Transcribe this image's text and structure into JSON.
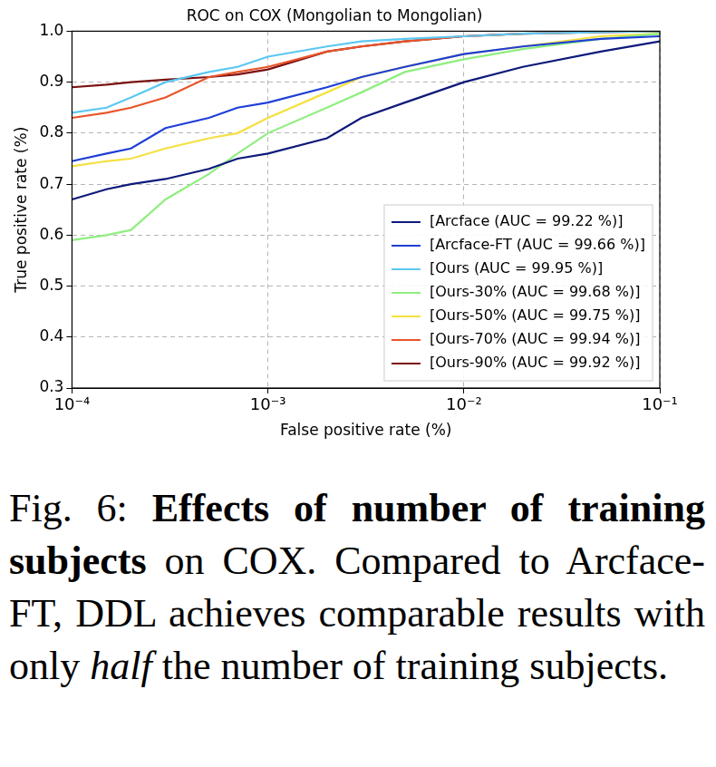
{
  "chart_data": {
    "type": "line",
    "title": "ROC on COX (Mongolian to Mongolian)",
    "x_label": "False positive rate (%)",
    "y_label": "True positive rate (%)",
    "log": "x",
    "grid": true,
    "legend": "lower right",
    "xlim": [
      0.0001,
      0.1
    ],
    "xticks": [
      {
        "value": 0.0001,
        "label": "10⁻⁴"
      },
      {
        "value": 0.001,
        "label": "10⁻³"
      },
      {
        "value": 0.01,
        "label": "10⁻²"
      },
      {
        "value": 0.1,
        "label": "10⁻¹"
      }
    ],
    "ylim": [
      0.3,
      1.0
    ],
    "yticks": [
      0.3,
      0.4,
      0.5,
      0.6,
      0.7,
      0.8,
      0.9,
      {
        "value": 1.0,
        "label": "1.0"
      }
    ],
    "x": [
      0.0001,
      0.00015,
      0.0002,
      0.0003,
      0.0005,
      0.0007,
      0.001,
      0.002,
      0.003,
      0.005,
      0.01,
      0.02,
      0.05,
      0.1
    ],
    "series": [
      {
        "name": "[Arcface (AUC = 99.22 %)]",
        "color": "#0d1a7a",
        "values": [
          0.67,
          0.69,
          0.7,
          0.71,
          0.73,
          0.75,
          0.76,
          0.79,
          0.83,
          0.86,
          0.9,
          0.93,
          0.96,
          0.98
        ]
      },
      {
        "name": "[Arcface-FT (AUC = 99.66 %)]",
        "color": "#1f3fd6",
        "values": [
          0.745,
          0.76,
          0.77,
          0.81,
          0.83,
          0.85,
          0.86,
          0.89,
          0.91,
          0.93,
          0.955,
          0.97,
          0.985,
          0.99
        ]
      },
      {
        "name": "[Ours (AUC = 99.95 %)]",
        "color": "#5cc8f2",
        "values": [
          0.84,
          0.85,
          0.87,
          0.9,
          0.92,
          0.93,
          0.95,
          0.97,
          0.98,
          0.985,
          0.99,
          0.995,
          0.998,
          1.0
        ]
      },
      {
        "name": "[Ours-30% (AUC = 99.68 %)]",
        "color": "#90ee80",
        "values": [
          0.59,
          0.6,
          0.61,
          0.67,
          0.72,
          0.76,
          0.8,
          0.85,
          0.88,
          0.92,
          0.945,
          0.965,
          0.985,
          0.995
        ]
      },
      {
        "name": "[Ours-50% (AUC = 99.75 %)]",
        "color": "#f5e040",
        "values": [
          0.735,
          0.745,
          0.75,
          0.77,
          0.79,
          0.8,
          0.83,
          0.88,
          0.91,
          0.93,
          0.955,
          0.97,
          0.99,
          0.995
        ]
      },
      {
        "name": "[Ours-70% (AUC = 99.94 %)]",
        "color": "#e8552a",
        "values": [
          0.83,
          0.84,
          0.85,
          0.87,
          0.91,
          0.92,
          0.93,
          0.96,
          0.97,
          0.98,
          0.99,
          0.995,
          0.998,
          1.0
        ]
      },
      {
        "name": "[Ours-90% (AUC = 99.92 %)]",
        "color": "#7a1010",
        "values": [
          0.89,
          0.895,
          0.9,
          0.905,
          0.91,
          0.915,
          0.925,
          0.96,
          0.97,
          0.98,
          0.99,
          0.995,
          0.998,
          1.0
        ]
      }
    ]
  },
  "caption": [
    {
      "text": "Fig. 6: ",
      "style": "normal"
    },
    {
      "text": "Effects of number of training subjects",
      "style": "bold"
    },
    {
      "text": " on COX. Compared to Arcface-FT, DDL achieves comparable results with only ",
      "style": "normal"
    },
    {
      "text": "half",
      "style": "italic"
    },
    {
      "text": " the number of training subjects.",
      "style": "normal"
    }
  ]
}
